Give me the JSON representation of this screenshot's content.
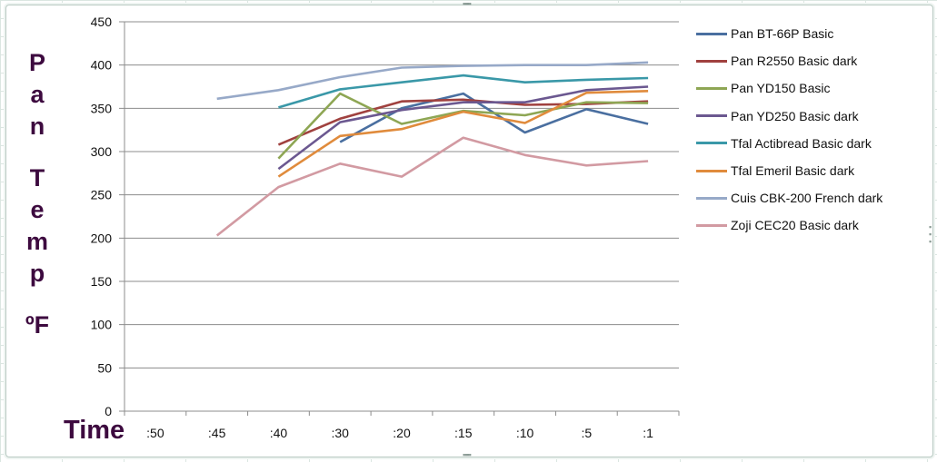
{
  "chart_data": {
    "type": "line",
    "title": "",
    "xlabel": "Time",
    "ylabel": "Pan Temp ºF",
    "ylim": [
      0,
      450
    ],
    "yticks": [
      0,
      50,
      100,
      150,
      200,
      250,
      300,
      350,
      400,
      450
    ],
    "grid": true,
    "legend_position": "right",
    "categories": [
      ":50",
      ":45",
      ":40",
      ":30",
      ":20",
      ":15",
      ":10",
      ":5",
      ":1"
    ],
    "series": [
      {
        "name": "Pan BT-66P Basic",
        "color": "#4a6fa0",
        "values": [
          null,
          null,
          null,
          311,
          350,
          367,
          322,
          349,
          332
        ]
      },
      {
        "name": "Pan R2550 Basic dark",
        "color": "#a0413f",
        "values": [
          null,
          null,
          308,
          338,
          358,
          360,
          354,
          355,
          358
        ]
      },
      {
        "name": "Pan YD150 Basic",
        "color": "#8ea654",
        "values": [
          null,
          null,
          292,
          367,
          332,
          347,
          342,
          357,
          356
        ]
      },
      {
        "name": "Pan YD250 Basic dark",
        "color": "#6b5890",
        "values": [
          null,
          null,
          280,
          334,
          348,
          357,
          357,
          371,
          375
        ]
      },
      {
        "name": "Tfal Actibread Basic dark",
        "color": "#3a98a8",
        "values": [
          null,
          null,
          351,
          372,
          380,
          388,
          380,
          383,
          385
        ]
      },
      {
        "name": "Tfal Emeril Basic dark",
        "color": "#e08b3c",
        "values": [
          null,
          null,
          271,
          318,
          326,
          346,
          333,
          368,
          370
        ]
      },
      {
        "name": "Cuis CBK-200 French dark",
        "color": "#97a9c8",
        "values": [
          null,
          361,
          371,
          386,
          397,
          399,
          400,
          400,
          403
        ]
      },
      {
        "name": "Zoji CEC20 Basic dark",
        "color": "#d29aa2",
        "values": [
          null,
          203,
          259,
          286,
          271,
          316,
          296,
          284,
          289
        ]
      }
    ]
  },
  "axis": {
    "y_title_letters": [
      "P",
      "a",
      "n",
      "",
      "T",
      "e",
      "m",
      "p",
      "",
      "ºF"
    ],
    "x_title": "Time"
  }
}
